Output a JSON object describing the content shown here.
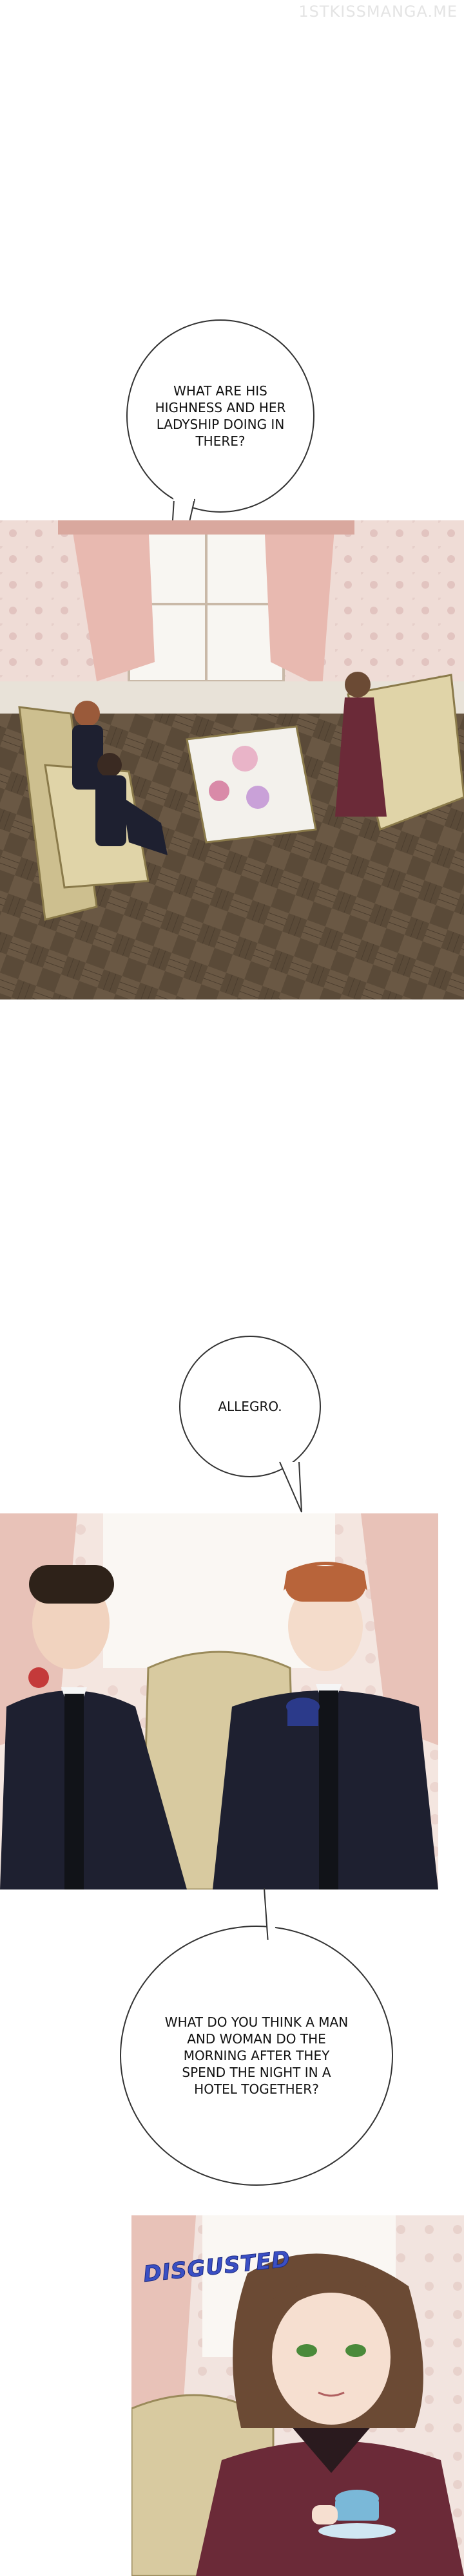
{
  "watermark": "1STKISSMANGA.ME",
  "bubbles": {
    "b1": "WHAT ARE HIS HIGHNESS AND HER LADYSHIP DOING IN THERE?",
    "b2": "ALLEGRO.",
    "b3": "WHAT DO YOU THINK A MAN AND WOMAN DO THE MORNING AFTER THEY SPEND THE NIGHT IN A HOTEL TOGETHER?"
  },
  "sfx": {
    "disgusted": "DISGUSTED"
  },
  "colors": {
    "floor": "#5a4a38",
    "wallpaper": "#efdcd6",
    "curtain": "#e8b9b0",
    "suit": "#1e2030",
    "dress": "#6b2a38"
  }
}
